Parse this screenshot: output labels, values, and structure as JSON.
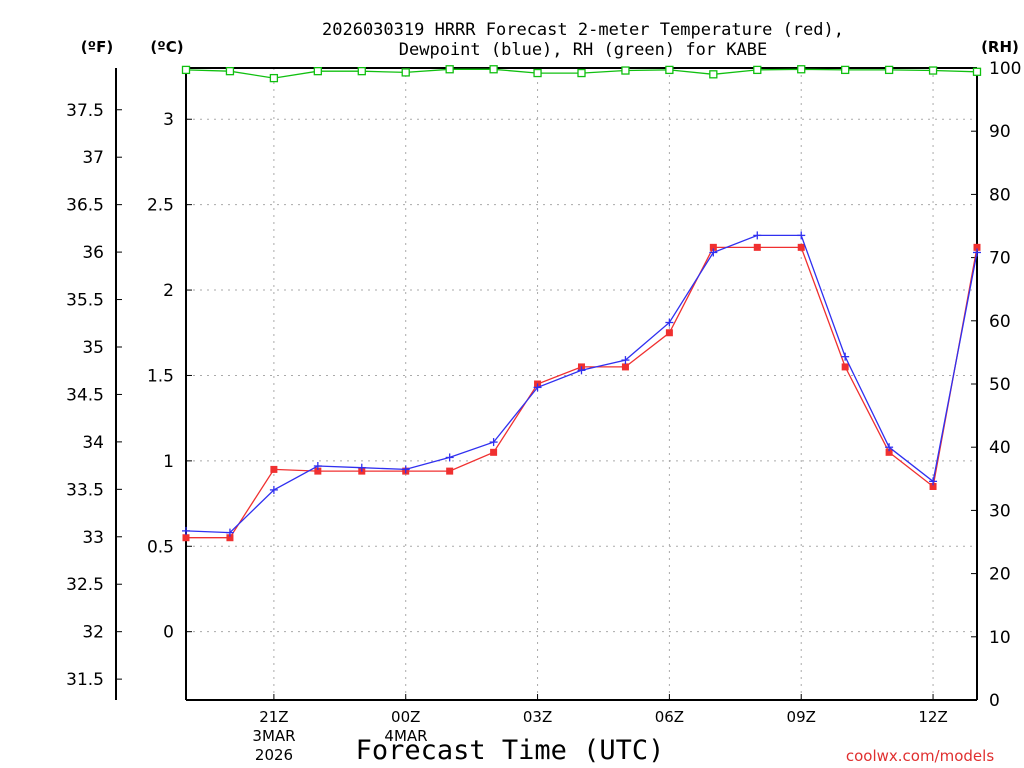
{
  "title_line1": "2026030319 HRRR Forecast 2-meter Temperature (red),",
  "title_line2": "Dewpoint (blue), RH (green) for KABE",
  "unit_f": "(ºF)",
  "unit_c": "(ºC)",
  "unit_rh": "(RH)",
  "xlabel": "Forecast Time (UTC)",
  "date_line1": "3MAR",
  "date_line2": "2026",
  "date2_line1": "4MAR",
  "watermark": "coolwx.com/models",
  "colors": {
    "temp": "#f03030",
    "dewp": "#3030f0",
    "rh": "#10c010",
    "grid": "#aaaaaa"
  },
  "chart_data": {
    "type": "line",
    "title": "2026030319 HRRR Forecast 2-meter Temperature (red), Dewpoint (blue), RH (green) for KABE",
    "xlabel": "Forecast Time (UTC)",
    "x": [
      19,
      20,
      21,
      22,
      23,
      24,
      25,
      26,
      27,
      28,
      29,
      30,
      31,
      32,
      33,
      34,
      35,
      36,
      37
    ],
    "xlim": [
      19,
      37
    ],
    "x_ticks": [
      {
        "x": 21,
        "label": "21Z"
      },
      {
        "x": 24,
        "label": "00Z"
      },
      {
        "x": 27,
        "label": "03Z"
      },
      {
        "x": 30,
        "label": "06Z"
      },
      {
        "x": 33,
        "label": "09Z"
      },
      {
        "x": 36,
        "label": "12Z"
      }
    ],
    "axes": {
      "celsius": {
        "label": "(ºC)",
        "ylim": [
          -0.4,
          3.3
        ],
        "ticks": [
          0,
          0.5,
          1,
          1.5,
          2,
          2.5,
          3
        ]
      },
      "fahrenheit": {
        "label": "(ºF)",
        "ylim": [
          31.28,
          37.94
        ],
        "ticks": [
          31.5,
          32,
          32.5,
          33,
          33.5,
          34,
          34.5,
          35,
          35.5,
          36,
          36.5,
          37,
          37.5
        ]
      },
      "rh": {
        "label": "(RH)",
        "ylim": [
          0,
          100
        ],
        "ticks": [
          0,
          10,
          20,
          30,
          40,
          50,
          60,
          70,
          80,
          90,
          100
        ]
      }
    },
    "grid": true,
    "series": [
      {
        "name": "Temperature",
        "color": "red",
        "units": "C",
        "values": [
          0.55,
          0.55,
          0.95,
          0.94,
          0.94,
          0.94,
          0.94,
          1.05,
          1.45,
          1.55,
          1.55,
          1.75,
          2.25,
          2.25,
          2.25,
          1.55,
          1.05,
          0.85,
          2.25
        ]
      },
      {
        "name": "Dewpoint",
        "color": "blue",
        "units": "C",
        "values": [
          0.59,
          0.58,
          0.83,
          0.97,
          0.96,
          0.95,
          1.02,
          1.11,
          1.43,
          1.53,
          1.59,
          1.81,
          2.22,
          2.32,
          2.32,
          1.61,
          1.08,
          0.88,
          2.22
        ]
      },
      {
        "name": "RH",
        "color": "green",
        "units": "%",
        "values": [
          99.7,
          99.5,
          98.4,
          99.5,
          99.5,
          99.3,
          99.8,
          99.8,
          99.2,
          99.2,
          99.6,
          99.7,
          99.0,
          99.7,
          99.8,
          99.7,
          99.7,
          99.6,
          99.4
        ]
      }
    ]
  }
}
